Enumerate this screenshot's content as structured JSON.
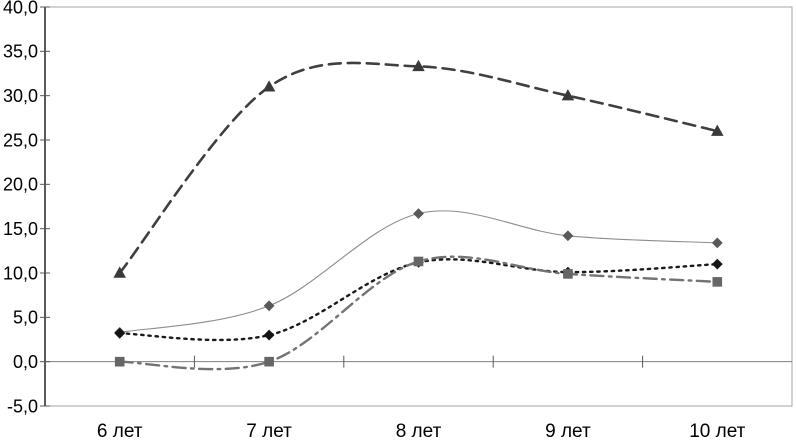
{
  "chart_data": {
    "type": "line",
    "title": "",
    "xlabel": "",
    "ylabel": "",
    "categories": [
      "6 лет",
      "7 лет",
      "8 лет",
      "9 лет",
      "10 лет"
    ],
    "series": [
      {
        "marker": "triangle",
        "line_style": "dashed",
        "line_color": "#3f3f3f",
        "marker_color": "#3a3a3a",
        "line_width": 2.6,
        "values": [
          10.0,
          31.0,
          33.3,
          30.0,
          26.0
        ]
      },
      {
        "marker": "diamond",
        "line_style": "solid",
        "line_color": "#8c8c8c",
        "marker_color": "#595959",
        "line_width": 1.1,
        "values": [
          3.3,
          6.3,
          16.7,
          14.2,
          13.4
        ]
      },
      {
        "marker": "diamond",
        "line_style": "dotted",
        "line_color": "#1a1a1a",
        "marker_color": "#141414",
        "line_width": 2.4,
        "values": [
          3.2,
          3.0,
          11.2,
          10.1,
          11.0
        ]
      },
      {
        "marker": "square",
        "line_style": "dashdot",
        "line_color": "#737373",
        "marker_color": "#666666",
        "line_width": 2.4,
        "values": [
          0.0,
          0.0,
          11.3,
          9.9,
          9.0
        ]
      }
    ],
    "ylim": [
      -5,
      40
    ],
    "ytick_step": 5,
    "ytick_labels": [
      "-5,0",
      "0,0",
      "5,0",
      "10,0",
      "15,0",
      "20,0",
      "25,0",
      "30,0",
      "35,0",
      "40,0"
    ],
    "category_axis_cross_at": 0,
    "grid": false,
    "legend": "none",
    "smoothed_lines": true,
    "colors": {
      "value_axis": "#595959",
      "plot_border": "#a6a6a6",
      "zero_line": "#808080",
      "tick": "#595959",
      "text": "#000000",
      "background": "#ffffff"
    }
  }
}
